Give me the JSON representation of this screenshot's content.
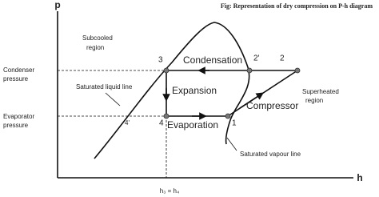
{
  "title": "Fig: Representation of dry compression on P-h diagram",
  "axes": {
    "y": "p",
    "x": "h"
  },
  "regions": {
    "subcooled": [
      "Subcooled",
      "region"
    ],
    "superheated": [
      "Superheated",
      "region"
    ]
  },
  "pressures": {
    "condenser": [
      "Condenser",
      "pressure"
    ],
    "evaporator": [
      "Evaporator",
      "pressure"
    ]
  },
  "lines": {
    "saturated_liquid": "Saturated liquid line",
    "saturated_vapour": "Saturated vapour line"
  },
  "processes": {
    "condensation": "Condensation",
    "expansion": "Expansion",
    "evaporation": "Evaporation",
    "compressor": "Compressor"
  },
  "points": {
    "1": "1",
    "2": "2",
    "3": "3",
    "4": "4",
    "2p": "2'",
    "4p": "4'"
  },
  "enthalpy_label": "h₃ = h₄"
}
